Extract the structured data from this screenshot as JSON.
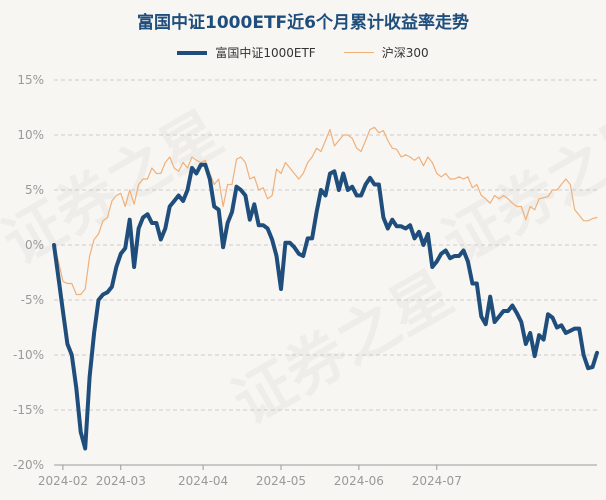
{
  "watermark": "证券之星",
  "chart_data": {
    "type": "line",
    "title": "富国中证1000ETF近6个月累计收益率走势",
    "xlabel": "",
    "ylabel": "",
    "ylim": [
      -20,
      15
    ],
    "yticks": [
      15,
      10,
      5,
      0,
      -5,
      -10,
      -15,
      -20
    ],
    "ytick_labels": [
      "15%",
      "10%",
      "5%",
      "0%",
      "-5%",
      "-10%",
      "-15%",
      "-20%"
    ],
    "xticks": [
      {
        "label": "2024-02",
        "index": 2
      },
      {
        "label": "2024-03",
        "index": 15
      },
      {
        "label": "2024-04",
        "index": 33.5
      },
      {
        "label": "2024-05",
        "index": 51
      },
      {
        "label": "2024-06",
        "index": 68.5
      },
      {
        "label": "2024-07",
        "index": 86
      }
    ],
    "grid": true,
    "legend": "top-center",
    "series": [
      {
        "name": "富国中证1000ETF",
        "color": "#1f4e7c",
        "values": [
          0,
          -3,
          -6,
          -9,
          -10,
          -13,
          -17,
          -18.5,
          -12,
          -8,
          -5,
          -4.5,
          -4.3,
          -3.8,
          -2,
          -0.8,
          -0.3,
          2.3,
          -2,
          1.5,
          2.5,
          2.8,
          2,
          2,
          0.5,
          1.5,
          3.5,
          4,
          4.5,
          4,
          5,
          7,
          6.5,
          7.3,
          7.3,
          6,
          3.5,
          3.2,
          -0.2,
          2,
          3,
          5.3,
          5,
          4.5,
          2.3,
          3.7,
          1.8,
          1.8,
          1.5,
          0.5,
          -1,
          -4,
          0.2,
          0.2,
          -0.2,
          -0.8,
          -1,
          0.6,
          0.6,
          3,
          5,
          4.5,
          6.5,
          6.7,
          5,
          6.5,
          5,
          5.3,
          4.5,
          4.5,
          5.5,
          6.1,
          5.5,
          5.5,
          2.5,
          1.5,
          2.3,
          1.7,
          1.7,
          1.5,
          1.8,
          0.6,
          1.2,
          0,
          1,
          -2,
          -1.5,
          -0.8,
          -0.5,
          -1.2,
          -1,
          -1,
          -0.5,
          -1.5,
          -3.5,
          -3.5,
          -6.5,
          -7.2,
          -4.7,
          -7,
          -6.5,
          -6,
          -6,
          -5.5,
          -6.2,
          -7,
          -9,
          -8,
          -10.1,
          -8.2,
          -8.6,
          -6.3,
          -6.6,
          -7.5,
          -7.3,
          -8,
          -7.8,
          -7.6,
          -7.6,
          -10,
          -11.2,
          -11.1,
          -9.8
        ]
      },
      {
        "name": "沪深300",
        "color": "#f0b07a",
        "values": [
          0,
          -1.5,
          -3.3,
          -3.5,
          -3.5,
          -4.5,
          -4.5,
          -4,
          -1,
          0.5,
          1,
          2.2,
          2.5,
          4,
          4.5,
          4.7,
          3.5,
          5,
          3.7,
          5.5,
          6,
          6,
          7,
          6.5,
          6.5,
          7.5,
          8,
          7,
          6.7,
          7.5,
          7,
          8,
          7.7,
          7.5,
          7.7,
          6.5,
          5.5,
          6,
          3.5,
          5.5,
          5.5,
          7.8,
          8,
          7.5,
          6,
          6.2,
          5,
          5.2,
          4.2,
          4.5,
          6.9,
          6.5,
          7.5,
          7,
          6.5,
          6,
          6.5,
          7.5,
          8,
          8.8,
          8.5,
          9.5,
          10.5,
          9,
          9.5,
          10,
          10,
          9.7,
          8.8,
          8.5,
          9.5,
          10.5,
          10.7,
          10.2,
          10.4,
          9.5,
          8.8,
          8.7,
          8,
          8.2,
          8,
          7.7,
          8,
          7.2,
          8,
          7.5,
          6.5,
          6.2,
          6.5,
          6,
          6,
          6.2,
          6,
          6.2,
          5.2,
          5.5,
          4.5,
          4.2,
          3.8,
          4.5,
          4.2,
          4.5,
          4.2,
          3.8,
          3.5,
          3.5,
          2.3,
          3.5,
          3.2,
          4.2,
          4.3,
          4.4,
          5,
          5,
          5.5,
          6,
          5.5,
          3.2,
          2.7,
          2.2,
          2.2,
          2.4,
          2.5
        ]
      }
    ]
  }
}
